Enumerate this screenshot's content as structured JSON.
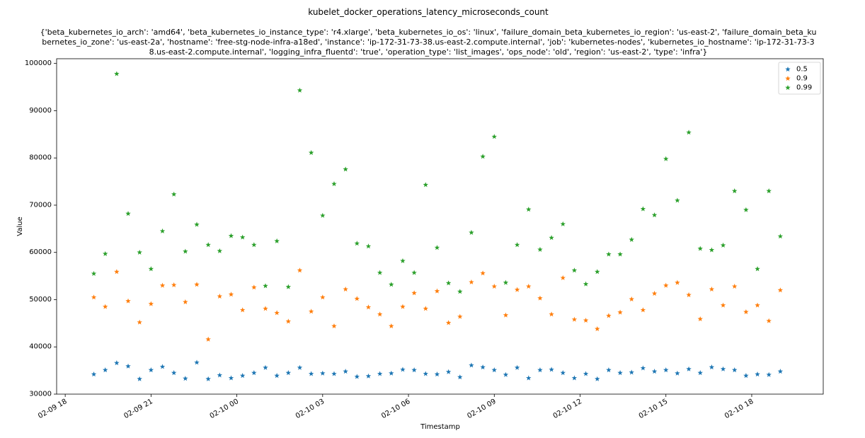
{
  "chart_data": {
    "type": "scatter",
    "title": "kubelet_docker_operations_latency_microseconds_count",
    "subtitle_lines": [
      "{'beta_kubernetes_io_arch': 'amd64', 'beta_kubernetes_io_instance_type': 'r4.xlarge', 'beta_kubernetes_io_os': 'linux', 'failure_domain_beta_kubernetes_io_region': 'us-east-2', 'failure_domain_beta_ku",
      "bernetes_io_zone': 'us-east-2a', 'hostname': 'free-stg-node-infra-a18ed', 'instance': 'ip-172-31-73-38.us-east-2.compute.internal', 'job': 'kubernetes-nodes', 'kubernetes_io_hostname': 'ip-172-31-73-3",
      "8.us-east-2.compute.internal', 'logging_infra_fluentd': 'true', 'operation_type': 'list_images', 'ops_node': 'old', 'region': 'us-east-2', 'type': 'infra'}"
    ],
    "xlabel": "Timestamp",
    "ylabel": "Value",
    "x_unit": "hours since 02-09 18:00",
    "xlim": [
      -0.3,
      26.5
    ],
    "ylim": [
      30000,
      101000
    ],
    "x_ticks": [
      {
        "value": 0,
        "label": "02-09 18"
      },
      {
        "value": 3,
        "label": "02-09 21"
      },
      {
        "value": 6,
        "label": "02-10 00"
      },
      {
        "value": 9,
        "label": "02-10 03"
      },
      {
        "value": 12,
        "label": "02-10 06"
      },
      {
        "value": 15,
        "label": "02-10 09"
      },
      {
        "value": 18,
        "label": "02-10 12"
      },
      {
        "value": 21,
        "label": "02-10 15"
      },
      {
        "value": 24,
        "label": "02-10 18"
      }
    ],
    "y_ticks": [
      30000,
      40000,
      50000,
      60000,
      70000,
      80000,
      90000,
      100000
    ],
    "x": [
      1.0,
      1.4,
      1.8,
      2.2,
      2.6,
      3.0,
      3.4,
      3.8,
      4.2,
      4.6,
      5.0,
      5.4,
      5.8,
      6.2,
      6.6,
      7.0,
      7.4,
      7.8,
      8.2,
      8.6,
      9.0,
      9.4,
      9.8,
      10.2,
      10.6,
      11.0,
      11.4,
      11.8,
      12.2,
      12.6,
      13.0,
      13.4,
      13.8,
      14.2,
      14.6,
      15.0,
      15.4,
      15.8,
      16.2,
      16.6,
      17.0,
      17.4,
      17.8,
      18.2,
      18.6,
      19.0,
      19.4,
      19.8,
      20.2,
      20.6,
      21.0,
      21.4,
      21.8,
      22.2,
      22.6,
      23.0,
      23.4,
      23.8,
      24.2,
      24.6,
      25.0
    ],
    "series": [
      {
        "name": "0.5",
        "color": "#1f77b4",
        "values": [
          34200,
          35100,
          36600,
          35900,
          33200,
          35100,
          35800,
          34500,
          33300,
          36700,
          33200,
          34000,
          33400,
          33900,
          34500,
          35600,
          33900,
          34500,
          35600,
          34300,
          34400,
          34300,
          34800,
          33700,
          33800,
          34300,
          34400,
          35200,
          35100,
          34300,
          34200,
          34700,
          33600,
          36100,
          35700,
          35100,
          34100,
          35600,
          33400,
          35100,
          35200,
          34500,
          33400,
          34300,
          33200,
          35100,
          34500,
          34600,
          35500,
          34800,
          35100,
          34400,
          35300,
          34500,
          35700,
          35300,
          35100,
          33900,
          34200,
          34100,
          34800
        ]
      },
      {
        "name": "0.9",
        "color": "#ff7f0e",
        "values": [
          50500,
          48500,
          55900,
          49700,
          45200,
          49100,
          53000,
          53100,
          49500,
          53200,
          41600,
          50700,
          51100,
          47800,
          52600,
          48100,
          47200,
          45400,
          56200,
          47500,
          50500,
          44400,
          52200,
          50200,
          48400,
          46900,
          44400,
          48500,
          51400,
          48100,
          51800,
          45100,
          46400,
          53700,
          55600,
          52800,
          46700,
          52100,
          52800,
          50300,
          46900,
          54600,
          45800,
          45600,
          43800,
          46600,
          47300,
          50100,
          47800,
          51300,
          53000,
          53600,
          51000,
          45900,
          52200,
          48800,
          52800,
          47400,
          48800,
          45500,
          52000
        ]
      },
      {
        "name": "0.99",
        "color": "#2ca02c",
        "values": [
          55500,
          59700,
          97800,
          68200,
          60000,
          56500,
          64500,
          72300,
          60200,
          65900,
          61600,
          60300,
          63500,
          63200,
          61600,
          52900,
          62400,
          52700,
          94300,
          81100,
          67800,
          74500,
          77600,
          61900,
          61300,
          55700,
          53200,
          58200,
          55700,
          74300,
          61000,
          53500,
          51700,
          64200,
          80300,
          84500,
          53600,
          61600,
          69100,
          60600,
          63100,
          66000,
          56200,
          53300,
          55900,
          59600,
          59600,
          62700,
          69200,
          67900,
          79800,
          71000,
          85400,
          60800,
          60500,
          61500,
          73000,
          69000,
          56500,
          73000,
          63400
        ]
      }
    ],
    "legend_position": "top-right"
  }
}
